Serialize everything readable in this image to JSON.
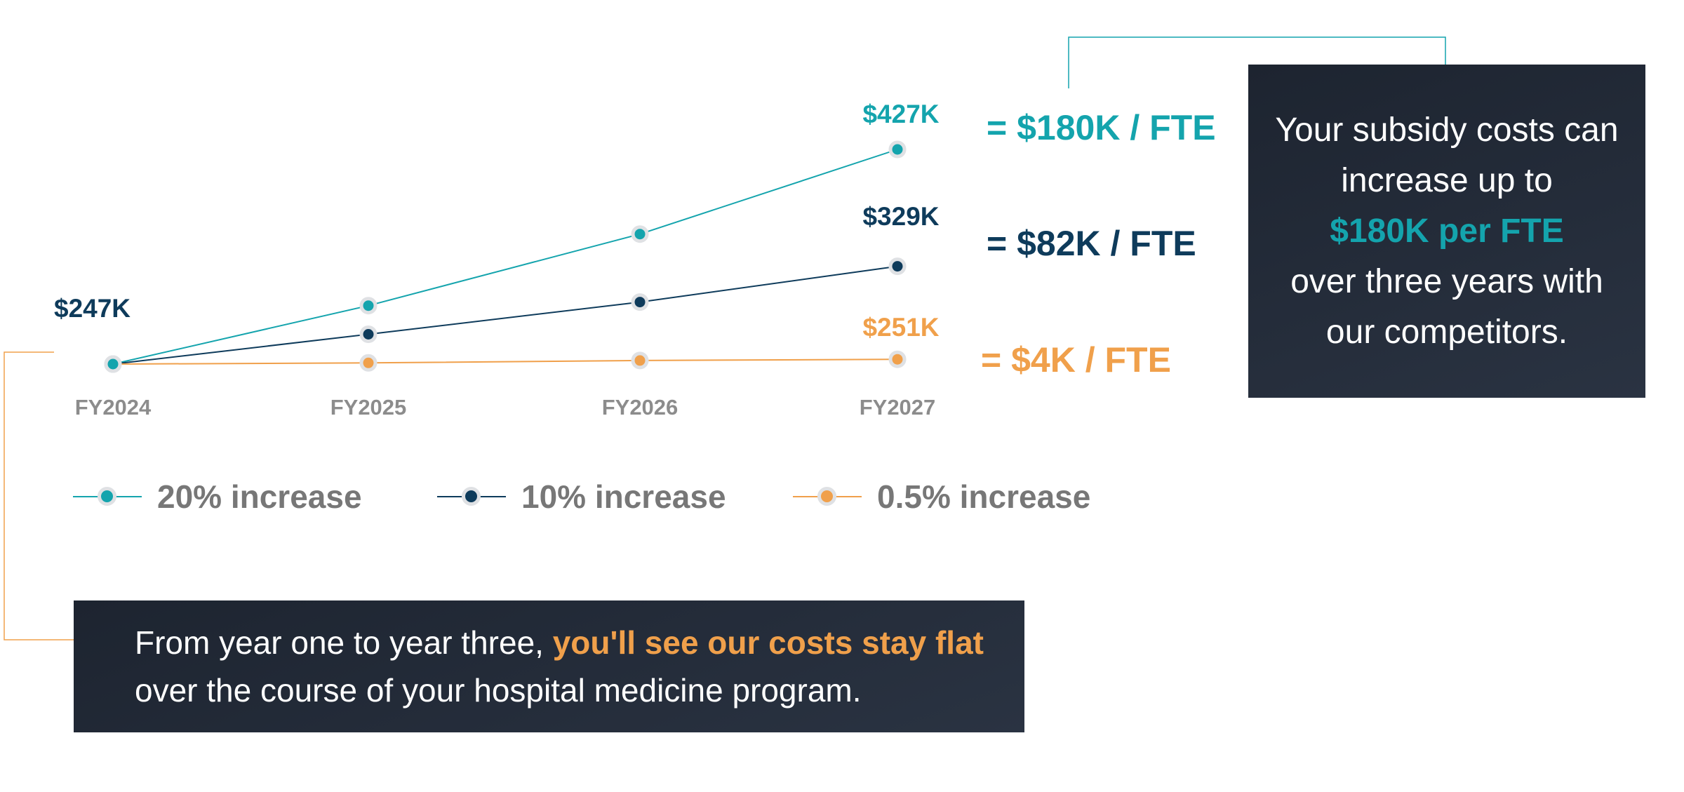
{
  "colors": {
    "teal": "#14a4ad",
    "navy": "#0e3b5b",
    "orange": "#f0a04b",
    "tick_gray": "#8c8c8c",
    "legend_gray": "#777777",
    "panel_dark": "#222a36",
    "marker_ring": "#dfe1e4"
  },
  "chart_data": {
    "type": "line",
    "categories": [
      "FY2024",
      "FY2025",
      "FY2026",
      "FY2027"
    ],
    "series": [
      {
        "name": "20% increase",
        "color": "#14a4ad",
        "values": [
          247,
          296,
          356,
          427
        ]
      },
      {
        "name": "10% increase",
        "color": "#0e3b5b",
        "values": [
          247,
          272,
          299,
          329
        ]
      },
      {
        "name": "0.5% increase",
        "color": "#f0a04b",
        "values": [
          247,
          248,
          250,
          251
        ]
      }
    ],
    "units": "$K",
    "start_label": "$247K",
    "end_labels": [
      "$427K",
      "$329K",
      "$251K"
    ],
    "fte_labels": [
      "= $180K / FTE",
      "= $82K / FTE",
      "= $4K / FTE"
    ],
    "grid": false,
    "legend_position": "bottom"
  },
  "legend": [
    {
      "label": "20% increase",
      "color": "#14a4ad"
    },
    {
      "label": "10% increase",
      "color": "#0e3b5b"
    },
    {
      "label": "0.5% increase",
      "color": "#f0a04b"
    }
  ],
  "callout_right": {
    "line1": "Your subsidy costs can",
    "line2": "increase up to",
    "highlight": "$180K per FTE",
    "line3": "over three years with",
    "line4": "our competitors."
  },
  "callout_bottom": {
    "prefix": "From year one to year three, ",
    "highlight": "you'll see our costs stay flat",
    "suffix": "over the course of your hospital medicine program."
  }
}
